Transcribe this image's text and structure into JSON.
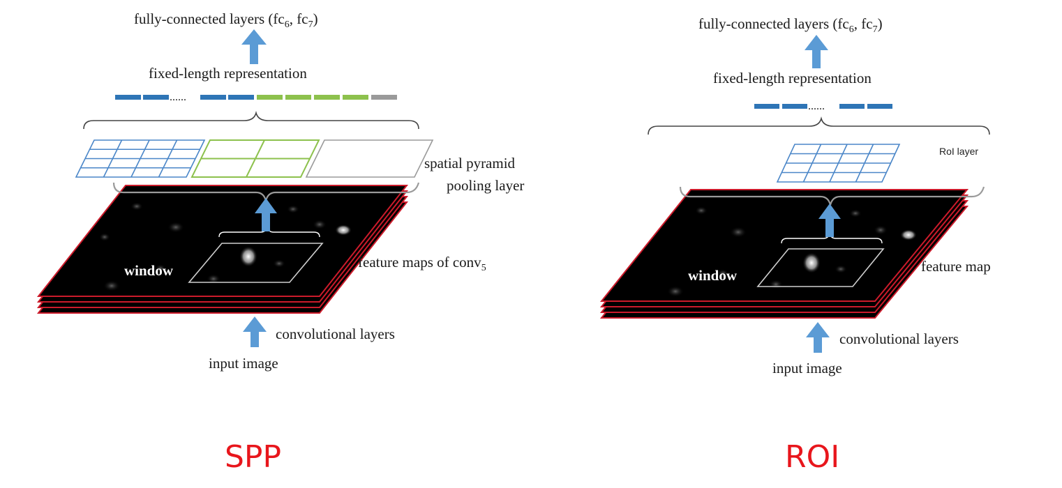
{
  "colors": {
    "arrow": "#5b9bd5",
    "blue_cell": "#2e75b6",
    "green_cell": "#8dc14d",
    "gray_cell": "#9a9a9a",
    "grid_blue": "#4a86c8",
    "grid_green": "#8dc14d",
    "grid_gray": "#9a9a9a",
    "map_edge": "#cc1b2b",
    "caption": "#e8161c"
  },
  "spp": {
    "top_label": "fully-connected layers (fc",
    "top_sub_1": "6",
    "top_mid": ", fc",
    "top_sub_2": "7",
    "top_end": ")",
    "fixed_label": "fixed-length representation",
    "vector_dots": "......",
    "pyramid_label_1": "spatial pyramid",
    "pyramid_label_2": "pooling layer",
    "window_label": "window",
    "feature_label": "feature maps of conv",
    "feature_sub": "5",
    "conv_label": "convolutional layers",
    "input_label": "input image",
    "caption": "SPP"
  },
  "roi": {
    "top_label": "fully-connected layers (fc",
    "top_sub_1": "6",
    "top_mid": ", fc",
    "top_sub_2": "7",
    "top_end": ")",
    "fixed_label": "fixed-length representation",
    "vector_dots": "......",
    "roi_layer_label": "RoI layer",
    "window_label": "window",
    "feature_label": "feature map",
    "conv_label": "convolutional layers",
    "input_label": "input image",
    "caption": "ROI"
  }
}
